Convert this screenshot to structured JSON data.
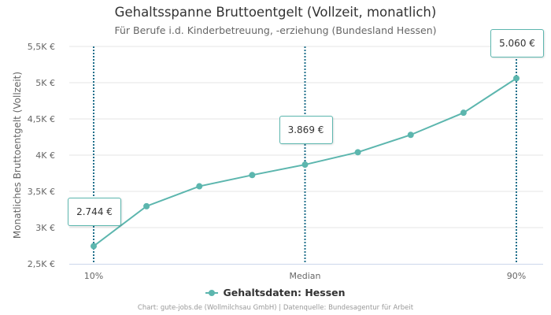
{
  "title": "Gehaltsspanne Bruttoentgelt (Vollzeit, monatlich)",
  "subtitle": "Für Berufe i.d. Kinderbetreuung, -erziehung (Bundesland Hessen)",
  "credits": "Chart: gute-jobs.de (Wollmilchsau GmbH) | Datenquelle: Bundesagentur für Arbeit",
  "colors": {
    "series": "#5cb6ae",
    "marker_line": "#1f6f8b",
    "grid": "#e6e6e6"
  },
  "chart_data": {
    "type": "line",
    "title": "Gehaltsspanne Bruttoentgelt (Vollzeit, monatlich)",
    "subtitle": "Für Berufe i.d. Kinderbetreuung, -erziehung (Bundesland Hessen)",
    "ylabel": "Monatliches Bruttoentgelt (Vollzeit)",
    "xlabel": "",
    "ylim": [
      2500,
      5500
    ],
    "yticks": [
      {
        "value": 2500,
        "label": "2,5K €"
      },
      {
        "value": 3000,
        "label": "3K €"
      },
      {
        "value": 3500,
        "label": "3,5K €"
      },
      {
        "value": 4000,
        "label": "4K €"
      },
      {
        "value": 4500,
        "label": "4,5K €"
      },
      {
        "value": 5000,
        "label": "5K €"
      },
      {
        "value": 5500,
        "label": "5,5K €"
      }
    ],
    "x": [
      10,
      20,
      30,
      40,
      50,
      60,
      70,
      80,
      90
    ],
    "xlim": [
      10,
      90
    ],
    "xticks": [
      {
        "value": 10,
        "label": "10%"
      },
      {
        "value": 50,
        "label": "Median"
      },
      {
        "value": 90,
        "label": "90%"
      }
    ],
    "grid": true,
    "legend_position": "bottom",
    "series": [
      {
        "name": "Gehaltsdaten: Hessen",
        "values": [
          2744,
          3295,
          3570,
          3725,
          3869,
          4040,
          4280,
          4585,
          5060
        ]
      }
    ],
    "annotations": [
      {
        "x": 10,
        "y": 2744,
        "label": "2.744 €"
      },
      {
        "x": 50,
        "y": 3869,
        "label": "3.869 €"
      },
      {
        "x": 90,
        "y": 5060,
        "label": "5.060 €"
      }
    ]
  }
}
